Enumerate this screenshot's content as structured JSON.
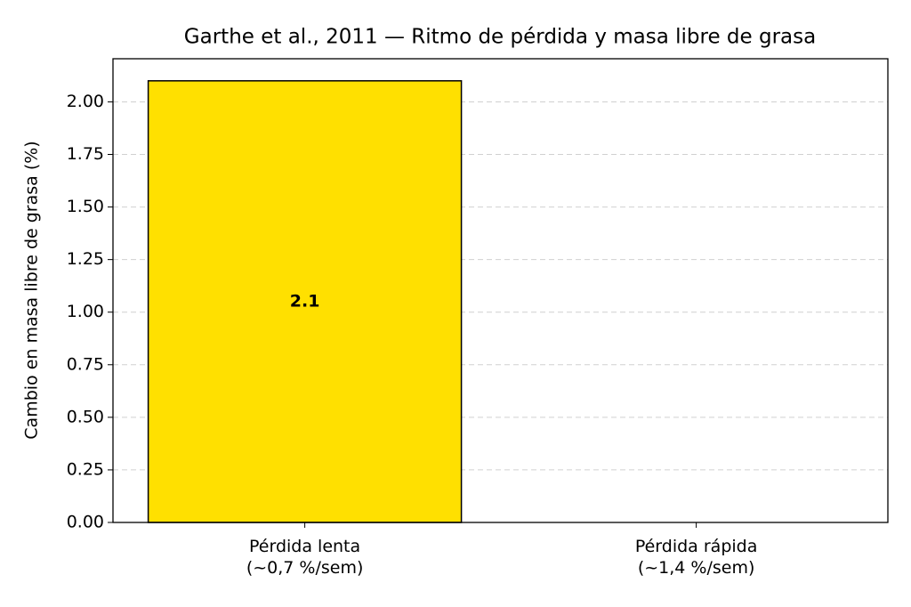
{
  "chart_data": {
    "type": "bar",
    "title": "Garthe et al., 2011 — Ritmo de pérdida y masa libre de grasa",
    "y_label": "Cambio en masa libre de grasa (%)",
    "categories": [
      "Pérdida lenta\n(~0,7 %/sem)",
      "Pérdida rápida\n(~1,4 %/sem)"
    ],
    "values": [
      2.1,
      0
    ],
    "value_labels": [
      "2.1",
      null
    ],
    "color": "#ffe000",
    "ylim": [
      0,
      2.205
    ],
    "yticks": [
      {
        "value": 0,
        "label": "0.00"
      },
      {
        "value": 0.25,
        "label": "0.25"
      },
      {
        "value": 0.5,
        "label": "0.50"
      },
      {
        "value": 0.75,
        "label": "0.75"
      },
      {
        "value": 1,
        "label": "1.00"
      },
      {
        "value": 1.25,
        "label": "1.25"
      },
      {
        "value": 1.5,
        "label": "1.50"
      },
      {
        "value": 1.75,
        "label": "1.75"
      },
      {
        "value": 2,
        "label": "2.00"
      }
    ],
    "grid": true
  }
}
